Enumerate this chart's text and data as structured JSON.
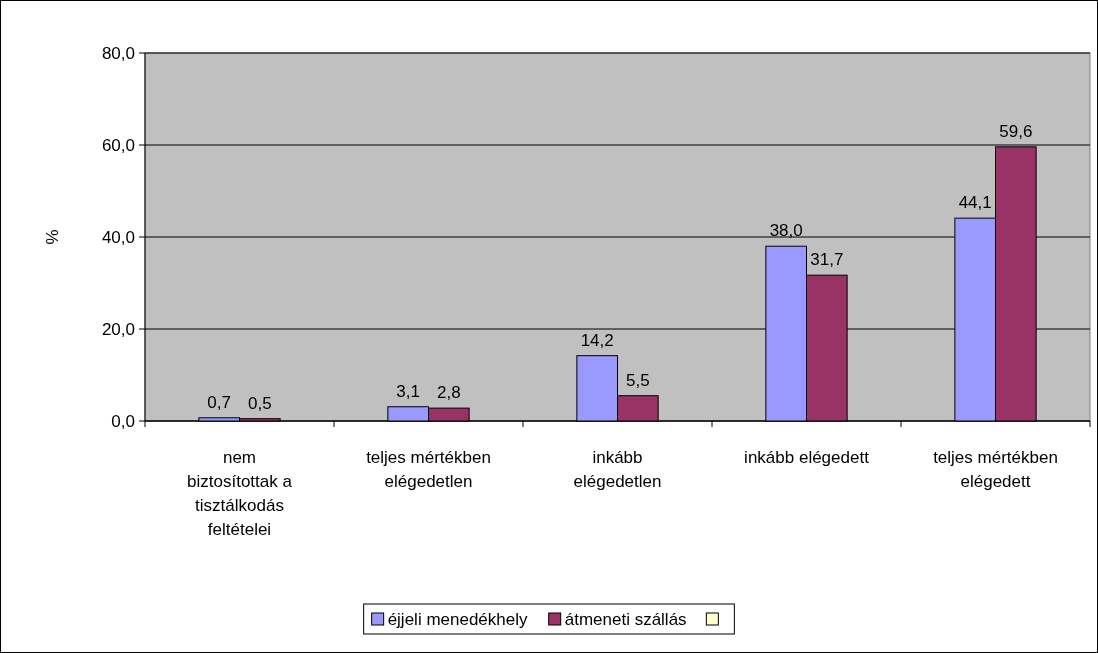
{
  "chart_data": {
    "type": "bar",
    "ylabel": "%",
    "categories": [
      "nem biztosítottak a tisztálkodás feltételei",
      "teljes mértékben elégedetlen",
      "inkább elégedetlen",
      "inkább elégedett",
      "teljes mértékben elégedett"
    ],
    "series": [
      {
        "name": "éjjeli menedékhely",
        "color": "#9999ff",
        "values": [
          0.7,
          3.1,
          14.2,
          38.0,
          44.1
        ],
        "value_labels": [
          "0,7",
          "3,1",
          "14,2",
          "38,0",
          "44,1"
        ]
      },
      {
        "name": "átmeneti szállás",
        "color": "#993366",
        "values": [
          0.5,
          2.8,
          5.5,
          31.7,
          59.6
        ],
        "value_labels": [
          "0,5",
          "2,8",
          "5,5",
          "31,7",
          "59,6"
        ]
      },
      {
        "color": "#ffffcc",
        "values": [
          null,
          null,
          null,
          null,
          null
        ]
      }
    ],
    "ylim": [
      0,
      80
    ],
    "yticks": [
      {
        "value": 0,
        "label": "0,0"
      },
      {
        "value": 20,
        "label": "20,0"
      },
      {
        "value": 40,
        "label": "40,0"
      },
      {
        "value": 60,
        "label": "60,0"
      },
      {
        "value": 80,
        "label": "80,0"
      }
    ],
    "grid": "y",
    "legend": "bottom"
  }
}
